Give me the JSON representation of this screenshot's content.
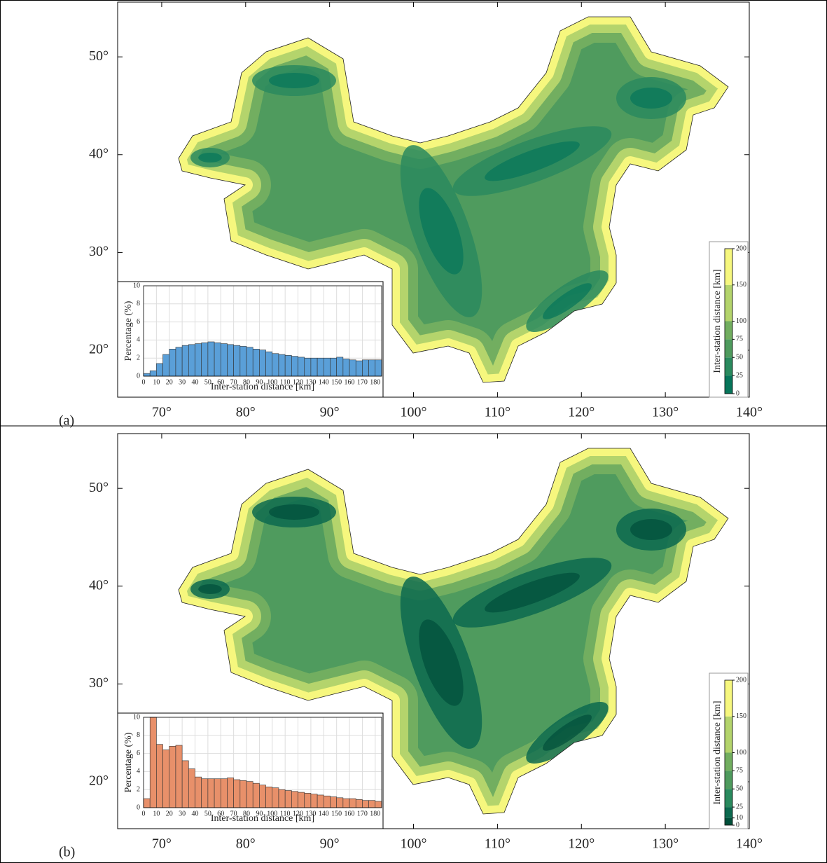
{
  "chart_data": [
    {
      "type": "contour-map",
      "panel_label": "(a)",
      "xlim": [
        64.75,
        140
      ],
      "ylim": [
        15.2,
        55.6
      ],
      "xticks": [
        {
          "value": 70,
          "label": "70°"
        },
        {
          "value": 80,
          "label": "80°"
        },
        {
          "value": 90,
          "label": "90°"
        },
        {
          "value": 100,
          "label": "100°"
        },
        {
          "value": 110,
          "label": "110°"
        },
        {
          "value": 120,
          "label": "120°"
        },
        {
          "value": 130,
          "label": "130°"
        },
        {
          "value": 140,
          "label": "140°"
        }
      ],
      "yticks": [
        {
          "value": 20,
          "label": "20°"
        },
        {
          "value": 30,
          "label": "30°"
        },
        {
          "value": 40,
          "label": "40°"
        },
        {
          "value": 50,
          "label": "50°"
        }
      ],
      "colorbar_label": "Inter-station distance  [km]",
      "colorbar_lim": [
        0,
        200
      ],
      "colorbar_ticks": [
        0,
        25,
        50,
        75,
        100,
        150,
        200
      ],
      "colorbar_colors": [
        "#06755a",
        "#2a8a5e",
        "#4f9b5e",
        "#72ae60",
        "#b4d46c",
        "#f6f77e"
      ],
      "inset": {
        "type": "histogram",
        "xlabel": "Inter-station distance [km]",
        "ylabel": "Percentage (%)",
        "color": "#5a9fd8",
        "grid": true,
        "bins": [
          0,
          5,
          10,
          15,
          20,
          25,
          30,
          35,
          40,
          45,
          50,
          55,
          60,
          65,
          70,
          75,
          80,
          85,
          90,
          95,
          100,
          105,
          110,
          115,
          120,
          125,
          130,
          135,
          140,
          145,
          150,
          155,
          160,
          165,
          170,
          175,
          180,
          185
        ],
        "values": [
          0.3,
          0.6,
          1.4,
          2.4,
          3.0,
          3.2,
          3.4,
          3.5,
          3.6,
          3.7,
          3.8,
          3.7,
          3.6,
          3.5,
          3.4,
          3.3,
          3.2,
          3.0,
          2.9,
          2.7,
          2.5,
          2.4,
          2.3,
          2.2,
          2.1,
          2.0,
          2.0,
          2.0,
          2.0,
          2.0,
          2.1,
          1.9,
          1.8,
          1.7,
          1.8,
          1.8,
          1.8
        ],
        "xlim": [
          0,
          185
        ],
        "xticks": [
          0,
          10,
          20,
          30,
          40,
          50,
          60,
          70,
          80,
          90,
          100,
          110,
          120,
          130,
          140,
          150,
          160,
          170,
          180
        ],
        "ylim": [
          0,
          10
        ],
        "yticks": [
          0,
          2,
          4,
          6,
          8,
          10
        ]
      }
    },
    {
      "type": "contour-map",
      "panel_label": "(b)",
      "xlim": [
        64.75,
        140
      ],
      "ylim": [
        15.2,
        55.6
      ],
      "xticks": [
        {
          "value": 70,
          "label": "70°"
        },
        {
          "value": 80,
          "label": "80°"
        },
        {
          "value": 90,
          "label": "90°"
        },
        {
          "value": 100,
          "label": "100°"
        },
        {
          "value": 110,
          "label": "110°"
        },
        {
          "value": 120,
          "label": "120°"
        },
        {
          "value": 130,
          "label": "130°"
        },
        {
          "value": 140,
          "label": "140°"
        }
      ],
      "yticks": [
        {
          "value": 20,
          "label": "20°"
        },
        {
          "value": 30,
          "label": "30°"
        },
        {
          "value": 40,
          "label": "40°"
        },
        {
          "value": 50,
          "label": "50°"
        }
      ],
      "colorbar_label": "Inter-station distance  [km]",
      "colorbar_lim": [
        0,
        200
      ],
      "colorbar_ticks": [
        0,
        10,
        25,
        50,
        75,
        100,
        150,
        200
      ],
      "colorbar_colors": [
        "#004f3a",
        "#0c6a4f",
        "#2a8a5e",
        "#4f9b5e",
        "#72ae60",
        "#b4d46c",
        "#f6f77e"
      ],
      "inset": {
        "type": "histogram",
        "xlabel": "Inter-station distance [km]",
        "ylabel": "Percentage (%)",
        "color": "#e8906a",
        "grid": true,
        "bins": [
          0,
          5,
          10,
          15,
          20,
          25,
          30,
          35,
          40,
          45,
          50,
          55,
          60,
          65,
          70,
          75,
          80,
          85,
          90,
          95,
          100,
          105,
          110,
          115,
          120,
          125,
          130,
          135,
          140,
          145,
          150,
          155,
          160,
          165,
          170,
          175,
          180,
          185
        ],
        "values": [
          1.0,
          10.0,
          7.0,
          6.4,
          6.8,
          6.9,
          5.2,
          4.3,
          3.4,
          3.2,
          3.2,
          3.2,
          3.2,
          3.3,
          3.1,
          3.0,
          2.9,
          2.7,
          2.5,
          2.3,
          2.2,
          2.0,
          1.9,
          1.8,
          1.7,
          1.6,
          1.5,
          1.4,
          1.3,
          1.2,
          1.1,
          1.0,
          1.0,
          0.9,
          0.8,
          0.8,
          0.7
        ],
        "xlim": [
          0,
          185
        ],
        "xticks": [
          0,
          10,
          20,
          30,
          40,
          50,
          60,
          70,
          80,
          90,
          100,
          110,
          120,
          130,
          140,
          150,
          160,
          170,
          180
        ],
        "ylim": [
          0,
          10
        ],
        "yticks": [
          0,
          2,
          4,
          6,
          8,
          10
        ]
      }
    }
  ]
}
